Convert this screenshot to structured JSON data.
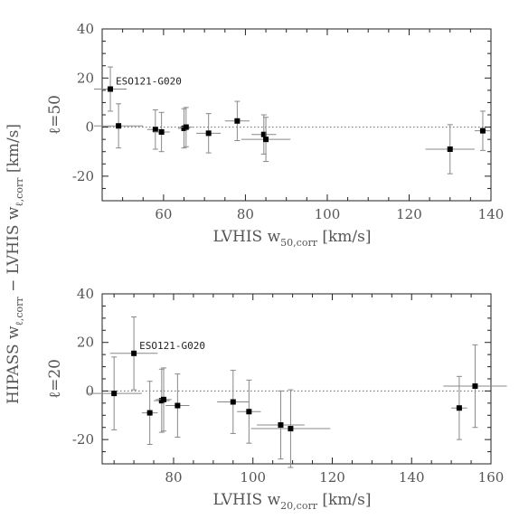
{
  "shared_ylabel": {
    "part1": "HIPASS  w",
    "sub1": "ℓ,corr",
    "part2": "  −  LVHIS  w",
    "sub2": "ℓ,corr",
    "part3": "  [km/s]"
  },
  "chart_data": [
    {
      "type": "scatter",
      "panel_label": "ℓ=50",
      "xlabel": {
        "main": "LVHIS  w",
        "sub": "50,corr",
        "unit": " [km/s]"
      },
      "xlim": [
        45,
        140
      ],
      "ylim": [
        -30,
        40
      ],
      "xticks": [
        60,
        80,
        100,
        120,
        140
      ],
      "yticks": [
        -20,
        0,
        20,
        40
      ],
      "zero_line": true,
      "annotation": {
        "text": "ESO121-G020",
        "x": 47,
        "y": 15.5
      },
      "points": [
        {
          "x": 47,
          "y": 15.5,
          "xerr": 4,
          "yerr": 9
        },
        {
          "x": 49,
          "y": 0.5,
          "xerr": 6,
          "yerr": 9
        },
        {
          "x": 58,
          "y": -1,
          "xerr": 2,
          "yerr": 8
        },
        {
          "x": 59.5,
          "y": -2,
          "xerr": 2,
          "yerr": 8
        },
        {
          "x": 65,
          "y": -0.5,
          "xerr": 1.5,
          "yerr": 8
        },
        {
          "x": 65.5,
          "y": 0,
          "xerr": 1.5,
          "yerr": 8
        },
        {
          "x": 71,
          "y": -2.5,
          "xerr": 3,
          "yerr": 8
        },
        {
          "x": 78,
          "y": 2.5,
          "xerr": 3,
          "yerr": 8
        },
        {
          "x": 84.5,
          "y": -3,
          "xerr": 3,
          "yerr": 8
        },
        {
          "x": 85,
          "y": -5,
          "xerr": 6,
          "yerr": 9
        },
        {
          "x": 130,
          "y": -9,
          "xerr": 6,
          "yerr": 10
        },
        {
          "x": 138,
          "y": -1.5,
          "xerr": 2,
          "yerr": 8
        }
      ]
    },
    {
      "type": "scatter",
      "panel_label": "ℓ=20",
      "xlabel": {
        "main": "LVHIS  w",
        "sub": "20,corr",
        "unit": " [km/s]"
      },
      "xlim": [
        62,
        160
      ],
      "ylim": [
        -30,
        40
      ],
      "xticks": [
        80,
        100,
        120,
        140,
        160
      ],
      "yticks": [
        -20,
        0,
        20,
        40
      ],
      "zero_line": true,
      "annotation": {
        "text": "ESO121-G020",
        "x": 70,
        "y": 15.5
      },
      "points": [
        {
          "x": 65,
          "y": -1,
          "xerr": 7,
          "yerr": 15
        },
        {
          "x": 70,
          "y": 15.5,
          "xerr": 6,
          "yerr": 15
        },
        {
          "x": 74,
          "y": -9,
          "xerr": 2,
          "yerr": 13
        },
        {
          "x": 77,
          "y": -4,
          "xerr": 2,
          "yerr": 13
        },
        {
          "x": 77.5,
          "y": -3.5,
          "xerr": 2,
          "yerr": 13
        },
        {
          "x": 81,
          "y": -6,
          "xerr": 3,
          "yerr": 13
        },
        {
          "x": 95,
          "y": -4.5,
          "xerr": 4,
          "yerr": 13
        },
        {
          "x": 99,
          "y": -8.5,
          "xerr": 3,
          "yerr": 13
        },
        {
          "x": 107,
          "y": -14,
          "xerr": 6,
          "yerr": 14
        },
        {
          "x": 109.5,
          "y": -15.5,
          "xerr": 10,
          "yerr": 16
        },
        {
          "x": 152,
          "y": -7,
          "xerr": 2,
          "yerr": 13
        },
        {
          "x": 156,
          "y": 2,
          "xerr": 8,
          "yerr": 17
        }
      ]
    }
  ]
}
